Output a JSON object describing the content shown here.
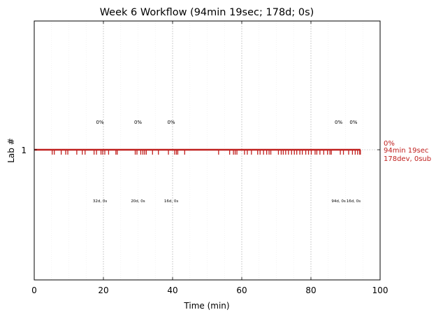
{
  "chart_data": {
    "type": "event-timeline",
    "title": "Week 6 Workflow (94min 19sec; 178d; 0s)",
    "xlabel": "Time (min)",
    "ylabel": "Lab #",
    "xlim": [
      0,
      100
    ],
    "xticks": [
      "0",
      "20",
      "40",
      "60",
      "80",
      "100"
    ],
    "yticks": [
      "1"
    ],
    "grid": {
      "major_x": [
        20,
        40,
        60,
        80
      ],
      "minor_x_step": 5
    },
    "lane": {
      "label": "1",
      "start": 0,
      "end": 94.32,
      "color": "#c0201e"
    },
    "right_annotation": [
      "0%",
      "94min 19sec",
      "178dev, 0sub"
    ],
    "segments": [
      {
        "center": 19,
        "percent_label": "0%",
        "count_label": "32d, 0s"
      },
      {
        "center": 30,
        "percent_label": "0%",
        "count_label": "20d, 0s"
      },
      {
        "center": 39.6,
        "percent_label": "0%",
        "count_label": "16d, 0s"
      },
      {
        "center": 88,
        "percent_label": "0%",
        "count_label": "94d, 0s"
      },
      {
        "center": 92.3,
        "percent_label": "0%",
        "count_label": "16d, 0s"
      }
    ],
    "events": [
      5.2,
      5.8,
      7.8,
      9.1,
      9.7,
      12.3,
      13.9,
      14.7,
      17.3,
      18.0,
      19.3,
      19.8,
      20.4,
      21.5,
      23.6,
      24.0,
      29.2,
      29.7,
      30.8,
      31.4,
      31.9,
      32.4,
      34.2,
      35.9,
      38.8,
      40.6,
      41.1,
      41.5,
      43.5,
      53.3,
      56.5,
      57.6,
      58.1,
      58.6,
      60.8,
      61.6,
      62.8,
      64.6,
      65.3,
      66.3,
      67.2,
      67.9,
      68.4,
      70.6,
      71.4,
      72.0,
      72.7,
      73.5,
      74.4,
      75.2,
      75.9,
      76.8,
      77.5,
      78.5,
      79.3,
      80.1,
      81.2,
      81.7,
      82.6,
      83.7,
      84.8,
      85.5,
      85.9,
      88.5,
      89.4,
      90.9,
      92.0,
      92.8,
      93.5,
      94.1,
      94.3
    ]
  }
}
